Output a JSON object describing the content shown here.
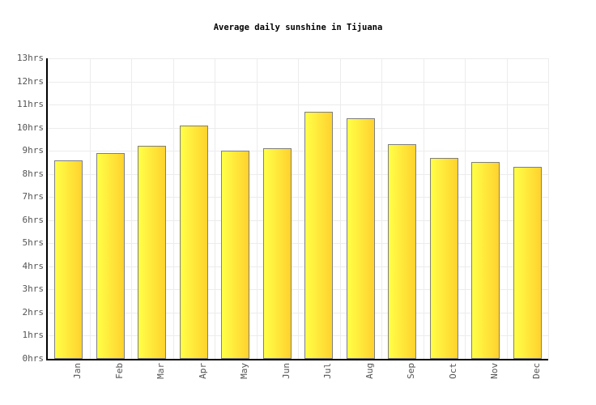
{
  "chart_data": {
    "type": "bar",
    "title": "Average daily sunshine in Tijuana",
    "categories": [
      "Jan",
      "Feb",
      "Mar",
      "Apr",
      "May",
      "Jun",
      "Jul",
      "Aug",
      "Sep",
      "Oct",
      "Nov",
      "Dec"
    ],
    "values": [
      8.6,
      8.9,
      9.2,
      10.1,
      9.0,
      9.1,
      10.7,
      10.4,
      9.3,
      8.7,
      8.5,
      8.3
    ],
    "unit": "hrs",
    "xlabel": "",
    "ylabel": "",
    "ylim": [
      0,
      13
    ],
    "y_tick_step": 1,
    "y_tick_labels": [
      "0hrs",
      "1hrs",
      "2hrs",
      "3hrs",
      "4hrs",
      "5hrs",
      "6hrs",
      "7hrs",
      "8hrs",
      "9hrs",
      "10hrs",
      "11hrs",
      "12hrs",
      "13hrs"
    ],
    "grid": true,
    "legend": "none",
    "colors": {
      "bar_gradient_left": "#ffff47",
      "bar_gradient_right": "#ffd22e",
      "bar_border": "#7f7f7f",
      "axis": "#000000",
      "grid": "#ececec",
      "tick_text": "#555555",
      "title_text": "#000000",
      "background": "#ffffff"
    }
  }
}
